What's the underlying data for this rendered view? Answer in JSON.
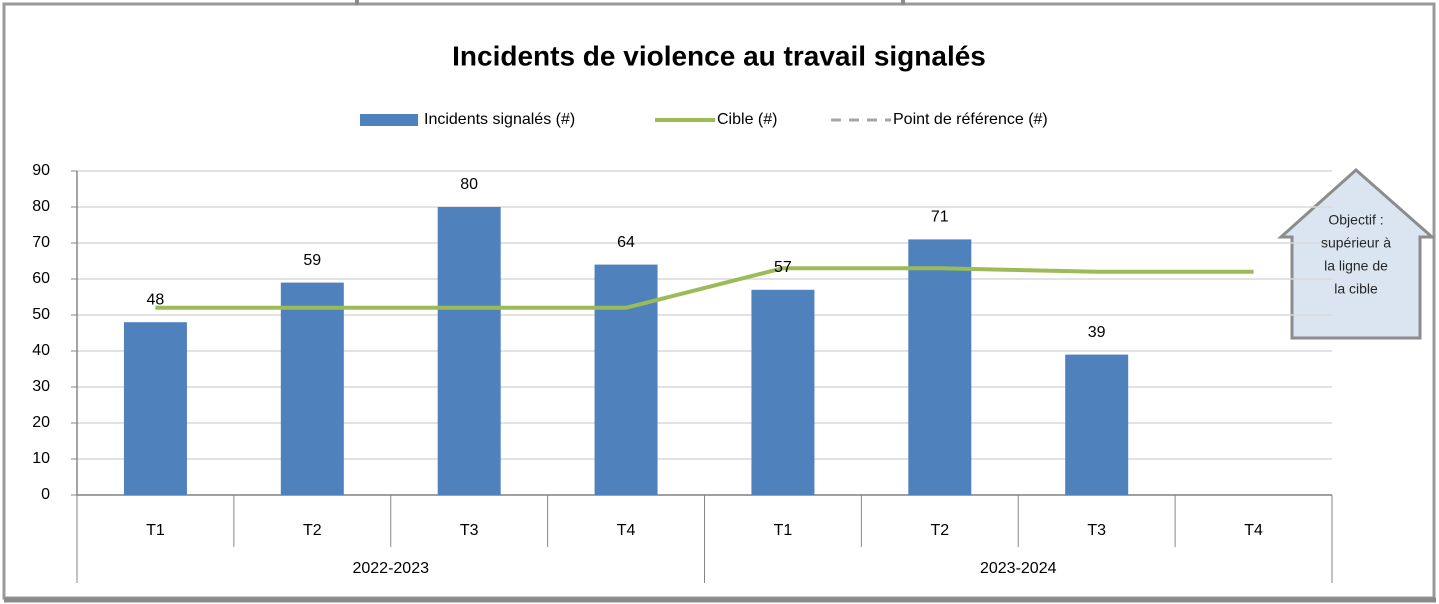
{
  "chart_data": {
    "type": "bar",
    "title": "Incidents de violence au travail signalés",
    "category_groups": [
      {
        "name": "2022-2023",
        "categories": [
          "T1",
          "T2",
          "T3",
          "T4"
        ]
      },
      {
        "name": "2023-2024",
        "categories": [
          "T1",
          "T2",
          "T3",
          "T4"
        ]
      }
    ],
    "series": [
      {
        "name": "Incidents signalés (#)",
        "type": "bar",
        "color": "#4f81bd",
        "values": [
          48,
          59,
          80,
          64,
          57,
          71,
          39,
          null
        ]
      },
      {
        "name": "Cible (#)",
        "type": "line",
        "color": "#9bbb59",
        "values": [
          52,
          52,
          52,
          52,
          63,
          63,
          62,
          62
        ]
      },
      {
        "name": "Point de référence (#)",
        "type": "line",
        "dashed": true,
        "color": "#a6a6a6",
        "values": [
          null,
          null,
          null,
          null,
          null,
          null,
          null,
          null
        ]
      }
    ],
    "ylim": [
      0,
      90
    ],
    "yticks": [
      0,
      10,
      20,
      30,
      40,
      50,
      60,
      70,
      80,
      90
    ],
    "grid": true,
    "legend": "top",
    "annotation": {
      "lines": [
        "Objectif :",
        "supérieur à",
        "la ligne de",
        "la cible"
      ]
    }
  }
}
